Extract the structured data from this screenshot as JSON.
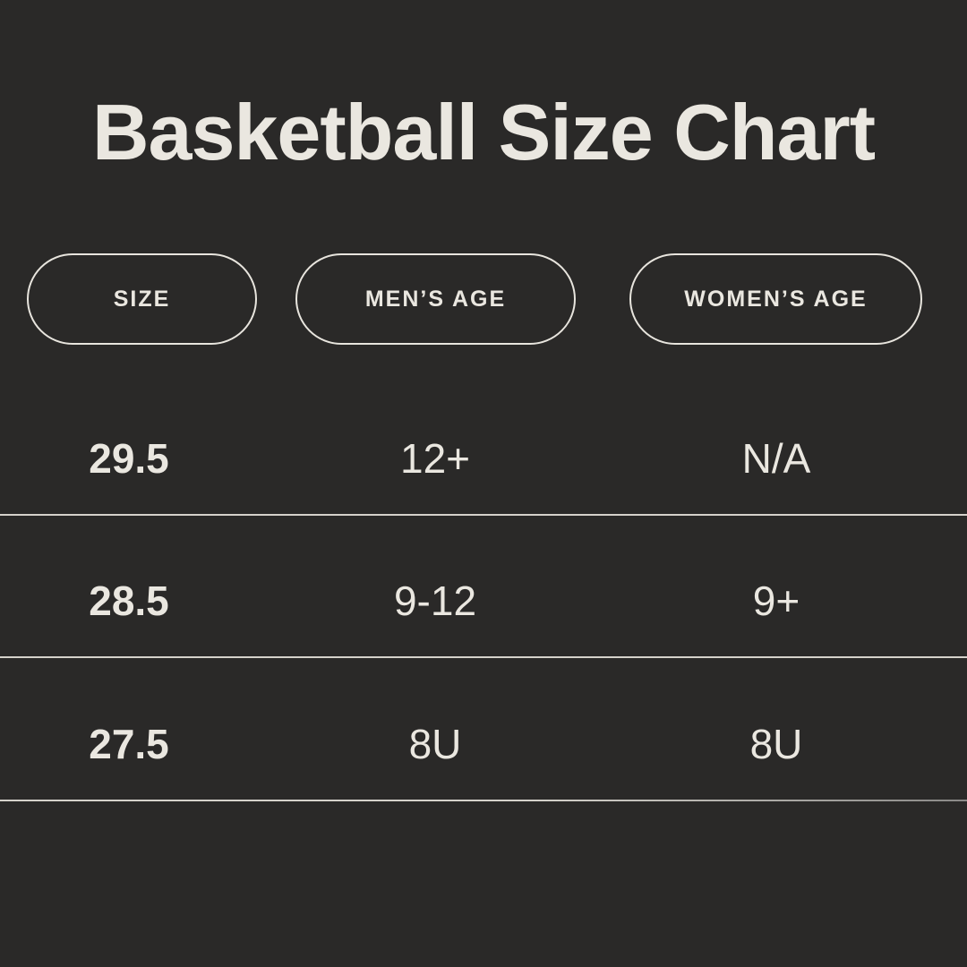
{
  "colors": {
    "background": "#2a2928",
    "text": "#eae7e0",
    "divider": "#d5d2cb",
    "pill-border": "#e8e5de"
  },
  "chart_data": {
    "type": "table",
    "title": "Basketball Size Chart",
    "columns": [
      "SIZE",
      "MEN’S AGE",
      "WOMEN’S AGE"
    ],
    "rows": [
      [
        "29.5",
        "12+",
        "N/A"
      ],
      [
        "28.5",
        "9-12",
        "9+"
      ],
      [
        "27.5",
        "8U",
        "8U"
      ]
    ]
  }
}
